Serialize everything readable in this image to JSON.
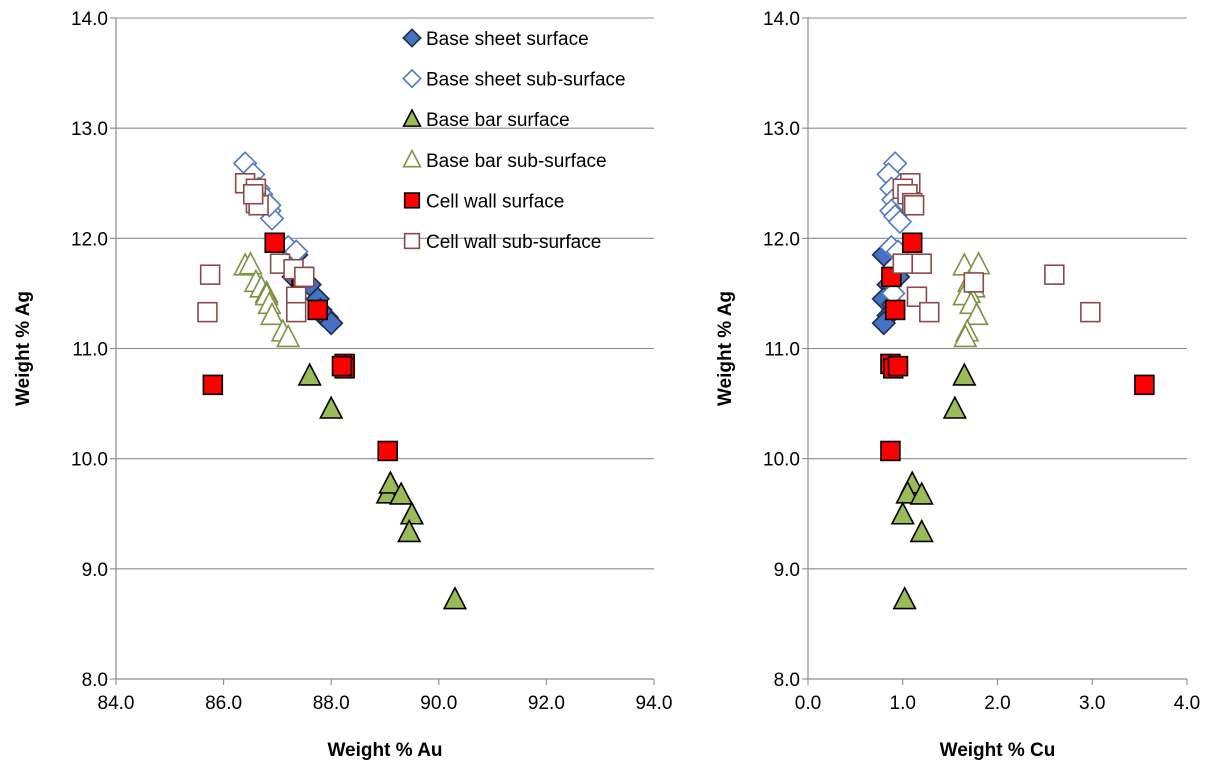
{
  "chart_data": [
    {
      "type": "scatter",
      "xlabel": "Weight % Au",
      "ylabel": "Weight % Ag",
      "xlim": [
        84,
        94
      ],
      "ylim": [
        8,
        14
      ],
      "xticks": [
        "84.0",
        "86.0",
        "88.0",
        "90.0",
        "92.0",
        "94.0"
      ],
      "yticks": [
        "8.0",
        "9.0",
        "10.0",
        "11.0",
        "12.0",
        "13.0",
        "14.0"
      ],
      "grid": "horizontal",
      "legend": "top-right",
      "series": [
        {
          "name": "Base sheet surface",
          "marker": "diamond",
          "filled": true,
          "color": "#4472C4",
          "edge": "#1F2D4A",
          "points": [
            [
              87.35,
              11.85
            ],
            [
              87.3,
              11.65
            ],
            [
              87.6,
              11.58
            ],
            [
              87.75,
              11.45
            ],
            [
              87.8,
              11.35
            ],
            [
              87.85,
              11.3
            ],
            [
              87.92,
              11.28
            ],
            [
              88.0,
              11.23
            ]
          ]
        },
        {
          "name": "Base sheet sub-surface",
          "marker": "diamond",
          "filled": false,
          "color": "#4F7AC0",
          "points": [
            [
              86.4,
              12.68
            ],
            [
              86.55,
              12.58
            ],
            [
              86.65,
              12.45
            ],
            [
              86.75,
              12.35
            ],
            [
              86.7,
              12.4
            ],
            [
              86.85,
              12.25
            ],
            [
              86.9,
              12.18
            ],
            [
              86.85,
              12.3
            ],
            [
              87.2,
              11.92
            ],
            [
              87.35,
              11.88
            ],
            [
              87.45,
              11.65
            ]
          ]
        },
        {
          "name": "Base bar surface",
          "marker": "triangle",
          "filled": true,
          "color": "#9BBB59",
          "edge": "#000000",
          "points": [
            [
              87.6,
              10.75
            ],
            [
              88.0,
              10.45
            ],
            [
              89.05,
              9.68
            ],
            [
              89.1,
              9.77
            ],
            [
              89.3,
              9.67
            ],
            [
              89.5,
              9.49
            ],
            [
              89.45,
              9.33
            ],
            [
              90.3,
              8.72
            ]
          ]
        },
        {
          "name": "Base bar sub-surface",
          "marker": "triangle",
          "filled": false,
          "color": "#7A9440",
          "points": [
            [
              86.4,
              11.75
            ],
            [
              86.5,
              11.76
            ],
            [
              86.6,
              11.6
            ],
            [
              86.7,
              11.55
            ],
            [
              86.8,
              11.5
            ],
            [
              86.8,
              11.48
            ],
            [
              86.85,
              11.4
            ],
            [
              86.9,
              11.3
            ],
            [
              87.1,
              11.15
            ],
            [
              87.2,
              11.1
            ]
          ]
        },
        {
          "name": "Cell wall surface",
          "marker": "square",
          "filled": true,
          "color": "#FF0000",
          "edge": "#000000",
          "points": [
            [
              86.95,
              11.96
            ],
            [
              87.45,
              11.65
            ],
            [
              87.75,
              11.35
            ],
            [
              88.25,
              10.86
            ],
            [
              88.25,
              10.82
            ],
            [
              88.2,
              10.84
            ],
            [
              85.8,
              10.67
            ],
            [
              89.05,
              10.07
            ]
          ]
        },
        {
          "name": "Cell wall sub-surface",
          "marker": "square",
          "filled": false,
          "color": "#8B4A4A",
          "points": [
            [
              86.4,
              12.5
            ],
            [
              86.6,
              12.45
            ],
            [
              86.6,
              12.32
            ],
            [
              86.65,
              12.3
            ],
            [
              86.55,
              12.4
            ],
            [
              87.05,
              11.77
            ],
            [
              87.3,
              11.72
            ],
            [
              87.35,
              11.47
            ],
            [
              87.35,
              11.33
            ],
            [
              85.75,
              11.67
            ],
            [
              85.7,
              11.33
            ],
            [
              87.5,
              11.65
            ]
          ]
        }
      ]
    },
    {
      "type": "scatter",
      "xlabel": "Weight % Cu",
      "ylabel": "Weight % Ag",
      "xlim": [
        0,
        4
      ],
      "ylim": [
        8,
        14
      ],
      "xticks": [
        "0.0",
        "1.0",
        "2.0",
        "3.0",
        "4.0"
      ],
      "yticks": [
        "8.0",
        "9.0",
        "10.0",
        "11.0",
        "12.0",
        "13.0",
        "14.0"
      ],
      "grid": "horizontal",
      "series": [
        {
          "name": "Base sheet surface",
          "marker": "diamond",
          "filled": true,
          "color": "#4472C4",
          "edge": "#1F2D4A",
          "points": [
            [
              0.8,
              11.85
            ],
            [
              0.85,
              11.58
            ],
            [
              0.8,
              11.45
            ],
            [
              0.9,
              11.35
            ],
            [
              0.85,
              11.3
            ],
            [
              0.8,
              11.23
            ],
            [
              0.95,
              11.65
            ],
            [
              0.9,
              11.4
            ]
          ]
        },
        {
          "name": "Base sheet sub-surface",
          "marker": "diamond",
          "filled": false,
          "color": "#4F7AC0",
          "points": [
            [
              0.92,
              12.68
            ],
            [
              0.85,
              12.58
            ],
            [
              0.88,
              12.45
            ],
            [
              0.9,
              12.35
            ],
            [
              0.95,
              12.3
            ],
            [
              0.88,
              12.25
            ],
            [
              0.92,
              12.2
            ],
            [
              0.97,
              12.15
            ],
            [
              0.88,
              11.92
            ],
            [
              0.95,
              11.88
            ],
            [
              0.9,
              11.5
            ]
          ]
        },
        {
          "name": "Base bar surface",
          "marker": "triangle",
          "filled": true,
          "color": "#9BBB59",
          "edge": "#000000",
          "points": [
            [
              1.65,
              10.75
            ],
            [
              1.55,
              10.45
            ],
            [
              1.1,
              9.77
            ],
            [
              1.05,
              9.68
            ],
            [
              1.2,
              9.67
            ],
            [
              1.0,
              9.49
            ],
            [
              1.2,
              9.33
            ],
            [
              1.02,
              8.72
            ]
          ]
        },
        {
          "name": "Base bar sub-surface",
          "marker": "triangle",
          "filled": false,
          "color": "#7A9440",
          "points": [
            [
              1.65,
              11.75
            ],
            [
              1.8,
              11.76
            ],
            [
              1.7,
              11.6
            ],
            [
              1.75,
              11.55
            ],
            [
              1.7,
              11.5
            ],
            [
              1.65,
              11.48
            ],
            [
              1.72,
              11.4
            ],
            [
              1.78,
              11.3
            ],
            [
              1.68,
              11.15
            ],
            [
              1.66,
              11.1
            ]
          ]
        },
        {
          "name": "Cell wall surface",
          "marker": "square",
          "filled": true,
          "color": "#FF0000",
          "edge": "#000000",
          "points": [
            [
              1.1,
              11.96
            ],
            [
              0.88,
              11.65
            ],
            [
              0.92,
              11.35
            ],
            [
              0.87,
              10.86
            ],
            [
              0.9,
              10.82
            ],
            [
              0.95,
              10.84
            ],
            [
              3.55,
              10.67
            ],
            [
              0.87,
              10.07
            ]
          ]
        },
        {
          "name": "Cell wall sub-surface",
          "marker": "square",
          "filled": false,
          "color": "#8B4A4A",
          "points": [
            [
              1.08,
              12.5
            ],
            [
              1.0,
              12.45
            ],
            [
              1.05,
              12.4
            ],
            [
              1.1,
              12.32
            ],
            [
              1.12,
              12.3
            ],
            [
              1.0,
              11.77
            ],
            [
              1.2,
              11.77
            ],
            [
              1.15,
              11.47
            ],
            [
              1.28,
              11.33
            ],
            [
              2.6,
              11.67
            ],
            [
              2.98,
              11.33
            ],
            [
              1.75,
              11.6
            ]
          ]
        }
      ]
    }
  ]
}
